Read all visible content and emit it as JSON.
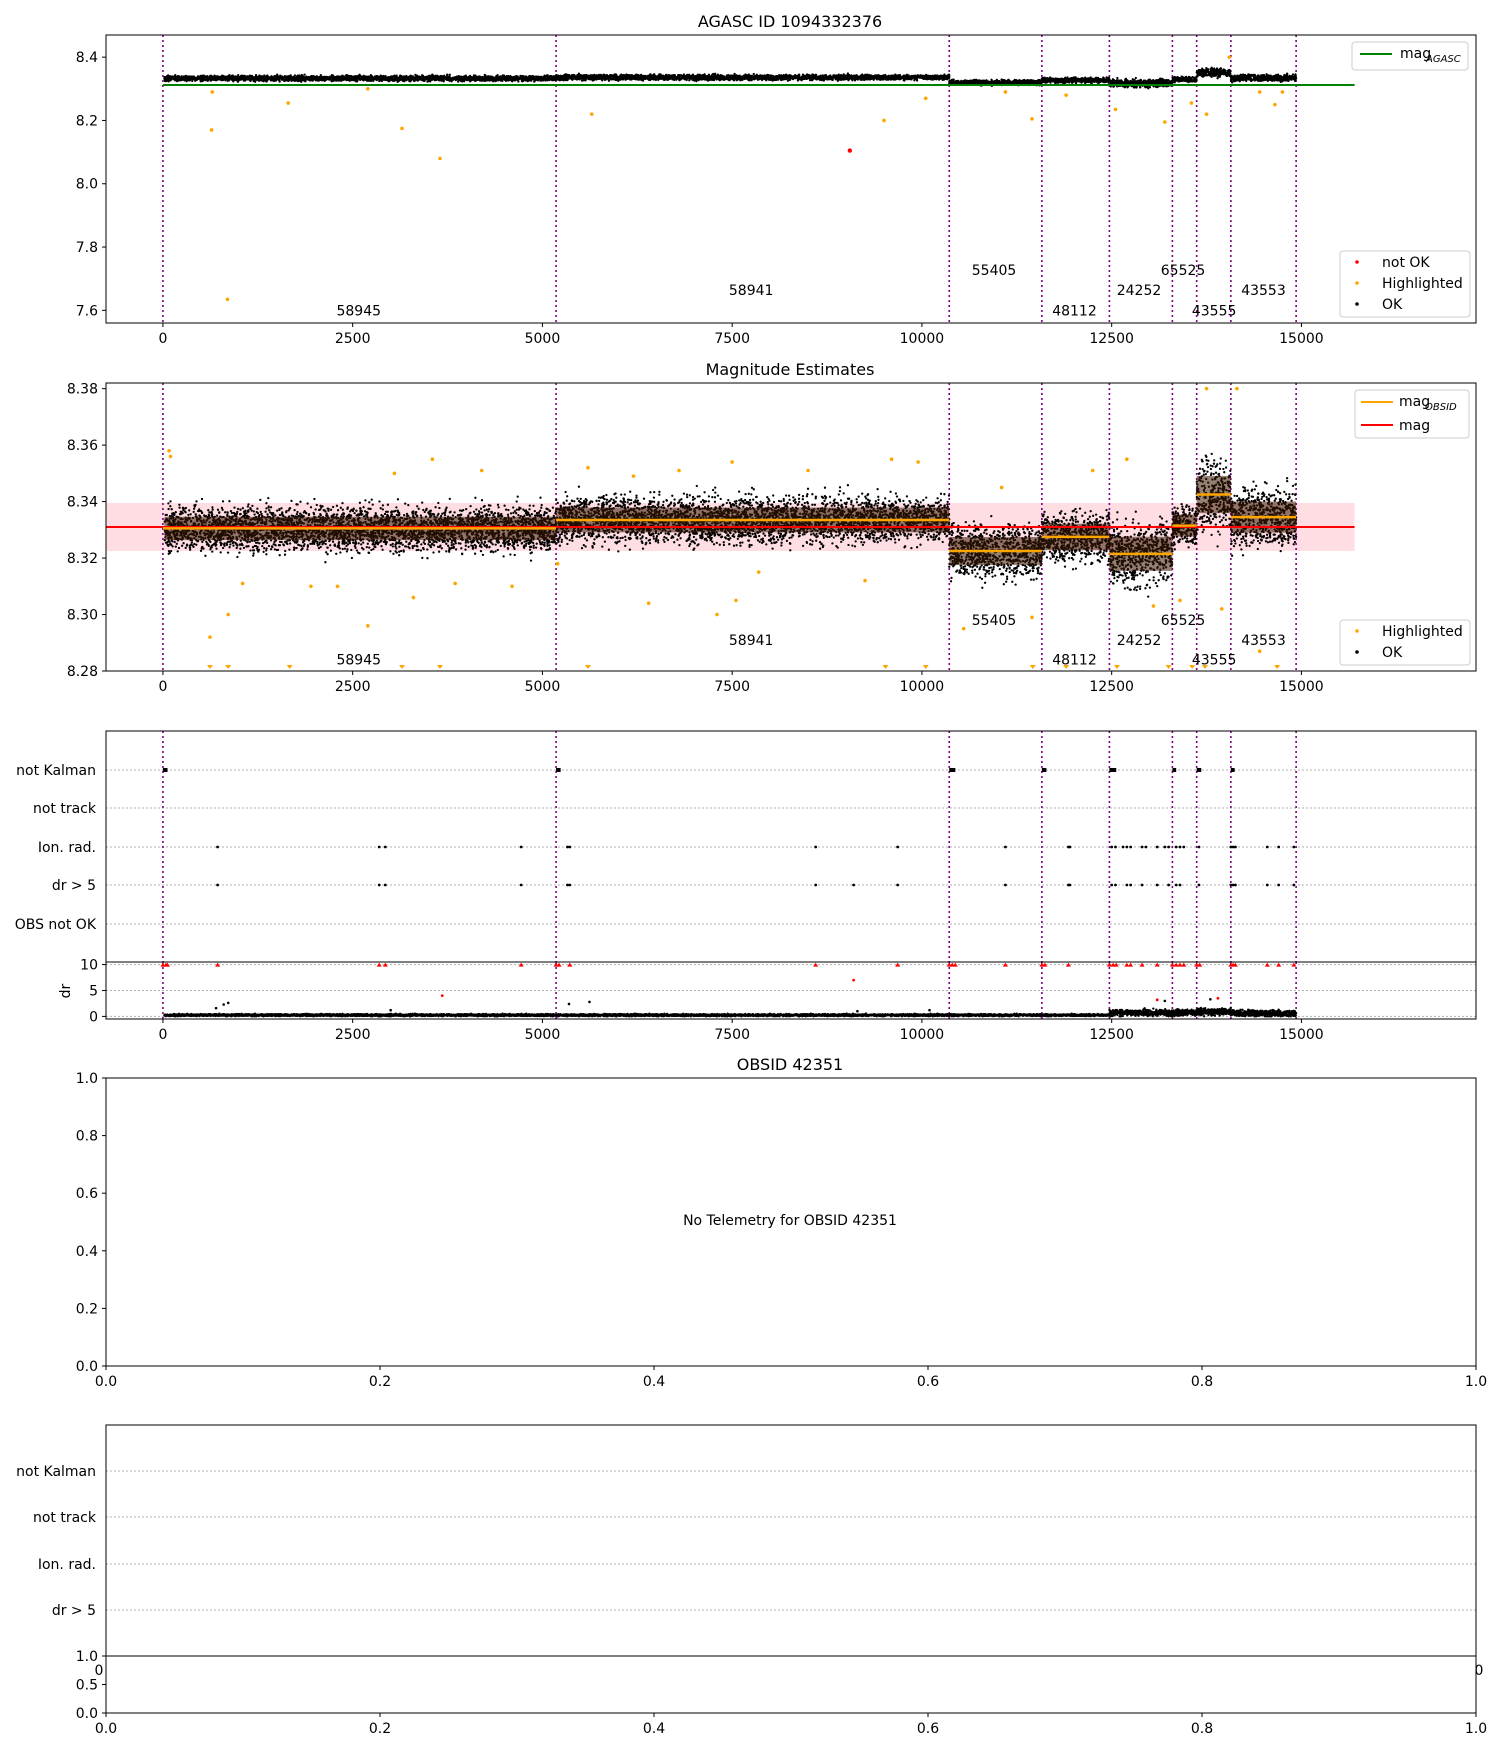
{
  "chart_data": [
    {
      "panel": "agasc_mag",
      "type": "scatter",
      "title": "AGASC ID 1094332376",
      "xlim": [
        -750,
        17300
      ],
      "ylim": [
        7.56,
        8.47
      ],
      "xticks": [
        0,
        2500,
        5000,
        7500,
        10000,
        12500,
        15000
      ],
      "yticks": [
        7.6,
        7.8,
        8.0,
        8.2,
        8.4
      ],
      "ytick_labels": [
        "7.6",
        "7.8",
        "8.0",
        "8.2",
        "8.4"
      ],
      "obs_boundaries": [
        0,
        5180,
        10360,
        11580,
        12470,
        13300,
        13620,
        14070,
        14930
      ],
      "obsid_labels": [
        {
          "text": "58945",
          "x": 2580,
          "y": 7.6
        },
        {
          "text": "58941",
          "x": 7750,
          "y": 7.665
        },
        {
          "text": "55405",
          "x": 10950,
          "y": 7.728
        },
        {
          "text": "48112",
          "x": 12010,
          "y": 7.6
        },
        {
          "text": "24252",
          "x": 12860,
          "y": 7.665
        },
        {
          "text": "65525",
          "x": 13440,
          "y": 7.728
        },
        {
          "text": "43555",
          "x": 13850,
          "y": 7.6
        },
        {
          "text": "43553",
          "x": 14500,
          "y": 7.665
        }
      ],
      "series": [
        {
          "name": "mag_AGASC",
          "kind": "line",
          "color": "#008000",
          "x": [
            0,
            15700
          ],
          "y": [
            8.312,
            8.312
          ]
        },
        {
          "name": "OK",
          "kind": "band",
          "color": "#000000",
          "segments": [
            {
              "x": [
                20,
                5180
              ],
              "center": 8.333,
              "spread": 0.008
            },
            {
              "x": [
                5180,
                10360
              ],
              "center": 8.336,
              "spread": 0.008
            },
            {
              "x": [
                10360,
                11580
              ],
              "center": 8.32,
              "spread": 0.008
            },
            {
              "x": [
                11580,
                12470
              ],
              "center": 8.327,
              "spread": 0.008
            },
            {
              "x": [
                12470,
                13300
              ],
              "center": 8.318,
              "spread": 0.012
            },
            {
              "x": [
                13300,
                13620
              ],
              "center": 8.33,
              "spread": 0.008
            },
            {
              "x": [
                13620,
                14070
              ],
              "center": 8.352,
              "spread": 0.012
            },
            {
              "x": [
                14070,
                14930
              ],
              "center": 8.334,
              "spread": 0.01
            }
          ]
        },
        {
          "name": "Highlighted",
          "kind": "scatter",
          "color": "#ffa500",
          "points": [
            [
              640,
              8.17
            ],
            [
              650,
              8.29
            ],
            [
              850,
              7.635
            ],
            [
              1650,
              8.255
            ],
            [
              2700,
              8.3
            ],
            [
              3150,
              8.175
            ],
            [
              3650,
              8.08
            ],
            [
              5650,
              8.22
            ],
            [
              9500,
              8.2
            ],
            [
              10050,
              8.27
            ],
            [
              11100,
              8.29
            ],
            [
              11450,
              8.205
            ],
            [
              11900,
              8.28
            ],
            [
              12550,
              8.235
            ],
            [
              13200,
              8.195
            ],
            [
              13550,
              8.255
            ],
            [
              13750,
              8.22
            ],
            [
              14050,
              8.4
            ],
            [
              14450,
              8.29
            ],
            [
              14650,
              8.25
            ],
            [
              14750,
              8.29
            ]
          ]
        },
        {
          "name": "not OK",
          "kind": "scatter",
          "color": "#ff0000",
          "points": [
            [
              9050,
              8.105
            ]
          ]
        }
      ],
      "legend_top": {
        "placement": "top-right",
        "entries": [
          {
            "label": "mag",
            "sub": "AGASC",
            "color": "#008000"
          }
        ]
      },
      "legend_bottom": {
        "placement": "bottom-right",
        "entries": [
          {
            "label": "not OK",
            "color": "#ff0000"
          },
          {
            "label": "Highlighted",
            "color": "#ffa500"
          },
          {
            "label": "OK",
            "color": "#000000"
          }
        ]
      }
    },
    {
      "panel": "mag_estimates",
      "type": "scatter",
      "title": "Magnitude Estimates",
      "xlim": [
        -750,
        17300
      ],
      "ylim": [
        8.28,
        8.382
      ],
      "xticks": [
        0,
        2500,
        5000,
        7500,
        10000,
        12500,
        15000
      ],
      "yticks": [
        8.28,
        8.3,
        8.32,
        8.34,
        8.36,
        8.38
      ],
      "ytick_labels": [
        "8.28",
        "8.30",
        "8.32",
        "8.34",
        "8.36",
        "8.38"
      ],
      "obs_boundaries": [
        0,
        5180,
        10360,
        11580,
        12470,
        13300,
        13620,
        14070,
        14930
      ],
      "obsid_labels": [
        {
          "text": "58945",
          "x": 2580,
          "y": 8.284
        },
        {
          "text": "58941",
          "x": 7750,
          "y": 8.291
        },
        {
          "text": "55405",
          "x": 10950,
          "y": 8.298
        },
        {
          "text": "48112",
          "x": 12010,
          "y": 8.284
        },
        {
          "text": "24252",
          "x": 12860,
          "y": 8.291
        },
        {
          "text": "65525",
          "x": 13440,
          "y": 8.298
        },
        {
          "text": "43555",
          "x": 13850,
          "y": 8.284
        },
        {
          "text": "43553",
          "x": 14500,
          "y": 8.291
        }
      ],
      "mag_line": {
        "name": "mag",
        "color": "#ff0000",
        "value": 8.331,
        "x": [
          -750,
          15700
        ]
      },
      "mag_band": {
        "color": "#ffb6c1",
        "range": [
          8.3225,
          8.3395
        ]
      },
      "obsid_mags": [
        {
          "x": [
            0,
            5180
          ],
          "value": 8.3305
        },
        {
          "x": [
            5180,
            10360
          ],
          "value": 8.3335
        },
        {
          "x": [
            10360,
            11580
          ],
          "value": 8.3225
        },
        {
          "x": [
            11580,
            12470
          ],
          "value": 8.3275
        },
        {
          "x": [
            12470,
            13300
          ],
          "value": 8.3215
        },
        {
          "x": [
            13300,
            13620
          ],
          "value": 8.3315
        },
        {
          "x": [
            13620,
            14070
          ],
          "value": 8.3425
        },
        {
          "x": [
            14070,
            14930
          ],
          "value": 8.3345
        }
      ],
      "ok_segments": [
        {
          "x": [
            20,
            5180
          ],
          "center": 8.3305,
          "spread": 0.0075
        },
        {
          "x": [
            5180,
            10360
          ],
          "center": 8.3335,
          "spread": 0.008
        },
        {
          "x": [
            10360,
            11580
          ],
          "center": 8.3225,
          "spread": 0.009
        },
        {
          "x": [
            11580,
            12470
          ],
          "center": 8.3275,
          "spread": 0.0085
        },
        {
          "x": [
            12470,
            13300
          ],
          "center": 8.3215,
          "spread": 0.011
        },
        {
          "x": [
            13300,
            13620
          ],
          "center": 8.3315,
          "spread": 0.007
        },
        {
          "x": [
            13620,
            14070
          ],
          "center": 8.3425,
          "spread": 0.012
        },
        {
          "x": [
            14070,
            14930
          ],
          "center": 8.3345,
          "spread": 0.01
        }
      ],
      "highlighted_points": [
        [
          80,
          8.358
        ],
        [
          100,
          8.356
        ],
        [
          620,
          8.292
        ],
        [
          860,
          8.3
        ],
        [
          1050,
          8.311
        ],
        [
          1950,
          8.31
        ],
        [
          2300,
          8.31
        ],
        [
          2700,
          8.296
        ],
        [
          3050,
          8.35
        ],
        [
          3300,
          8.306
        ],
        [
          3550,
          8.355
        ],
        [
          3850,
          8.311
        ],
        [
          4200,
          8.351
        ],
        [
          4600,
          8.31
        ],
        [
          5200,
          8.318
        ],
        [
          5600,
          8.352
        ],
        [
          6200,
          8.349
        ],
        [
          6400,
          8.304
        ],
        [
          6800,
          8.351
        ],
        [
          7300,
          8.3
        ],
        [
          7550,
          8.305
        ],
        [
          7500,
          8.354
        ],
        [
          7850,
          8.315
        ],
        [
          8500,
          8.351
        ],
        [
          9250,
          8.312
        ],
        [
          9600,
          8.355
        ],
        [
          9950,
          8.354
        ],
        [
          10550,
          8.295
        ],
        [
          11050,
          8.345
        ],
        [
          11450,
          8.299
        ],
        [
          12250,
          8.351
        ],
        [
          12700,
          8.355
        ],
        [
          13050,
          8.303
        ],
        [
          13400,
          8.305
        ],
        [
          13750,
          8.38
        ],
        [
          13950,
          8.302
        ],
        [
          14150,
          8.38
        ],
        [
          14450,
          8.287
        ]
      ],
      "clipped_low_x": [
        620,
        860,
        1670,
        3150,
        3650,
        5600,
        9520,
        10050,
        11460,
        11900,
        12570,
        13250,
        13560,
        13730,
        14680
      ],
      "legend_top": {
        "placement": "top-right",
        "entries": [
          {
            "label": "mag",
            "sub": "OBSID",
            "color": "#ffa500"
          },
          {
            "label": "mag",
            "color": "#ff0000"
          }
        ]
      },
      "legend_bottom": {
        "placement": "bottom-right",
        "entries": [
          {
            "label": "Highlighted",
            "color": "#ffa500"
          },
          {
            "label": "OK",
            "color": "#000000"
          }
        ]
      }
    },
    {
      "panel": "flags",
      "type": "scatter",
      "xlim": [
        -750,
        17300
      ],
      "categories": [
        "not Kalman",
        "not track",
        "Ion. rad.",
        "dr > 5",
        "OBS not OK"
      ],
      "obs_boundaries": [
        0,
        5180,
        10360,
        11580,
        12470,
        13300,
        13620,
        14070,
        14930
      ],
      "flag_runs": {
        "not Kalman": [
          [
            0,
            60
          ],
          [
            5180,
            5240
          ],
          [
            10360,
            10440
          ],
          [
            11580,
            11640
          ],
          [
            12470,
            12560
          ],
          [
            13300,
            13350
          ],
          [
            13620,
            13680
          ],
          [
            14070,
            14120
          ]
        ],
        "Ion. rad.": [
          [
            720
          ],
          [
            2850
          ],
          [
            2930
          ],
          [
            4720
          ],
          [
            5330
          ],
          [
            5360
          ],
          [
            8600
          ],
          [
            9680
          ],
          [
            11100
          ],
          [
            11930
          ],
          [
            11950
          ],
          [
            12500
          ],
          [
            12550
          ],
          [
            12650
          ],
          [
            12700
          ],
          [
            12750
          ],
          [
            12900
          ],
          [
            12950
          ],
          [
            13100
          ],
          [
            13200
          ],
          [
            13250
          ],
          [
            13350
          ],
          [
            13400
          ],
          [
            13450
          ],
          [
            13650
          ],
          [
            14070
          ],
          [
            14100
          ],
          [
            14130
          ],
          [
            14550
          ],
          [
            14700
          ],
          [
            14900
          ]
        ],
        "dr > 5": [
          [
            720
          ],
          [
            2850
          ],
          [
            2930
          ],
          [
            4720
          ],
          [
            5330
          ],
          [
            5360
          ],
          [
            8600
          ],
          [
            9100
          ],
          [
            9680
          ],
          [
            11100
          ],
          [
            11930
          ],
          [
            11950
          ],
          [
            12500
          ],
          [
            12550
          ],
          [
            12700
          ],
          [
            12750
          ],
          [
            12900
          ],
          [
            13100
          ],
          [
            13250
          ],
          [
            13350
          ],
          [
            13400
          ],
          [
            13650
          ],
          [
            14070
          ],
          [
            14100
          ],
          [
            14130
          ],
          [
            14550
          ],
          [
            14700
          ],
          [
            14900
          ]
        ]
      }
    },
    {
      "panel": "dr",
      "type": "scatter",
      "ylabel": "dr",
      "xlim": [
        -750,
        17300
      ],
      "ylim": [
        -0.5,
        10.5
      ],
      "yticks": [
        0,
        5,
        10
      ],
      "xticks": [
        0,
        2500,
        5000,
        7500,
        10000,
        12500,
        15000
      ],
      "ok_segments": [
        {
          "x": [
            20,
            12470
          ],
          "center": 0.25,
          "spread": 0.2
        },
        {
          "x": [
            12470,
            13620
          ],
          "center": 0.7,
          "spread": 0.6
        },
        {
          "x": [
            13620,
            14070
          ],
          "center": 0.9,
          "spread": 0.7
        },
        {
          "x": [
            14070,
            14930
          ],
          "center": 0.6,
          "spread": 0.6
        }
      ],
      "outliers": [
        [
          700,
          1.6
        ],
        [
          800,
          2.3
        ],
        [
          860,
          2.6
        ],
        [
          3000,
          1.2
        ],
        [
          5350,
          2.4
        ],
        [
          5620,
          2.8
        ],
        [
          9150,
          1.0
        ],
        [
          10100,
          1.2
        ],
        [
          13200,
          3.0
        ],
        [
          13800,
          3.3
        ]
      ],
      "red_outliers": [
        [
          3680,
          4.0
        ],
        [
          9100,
          7.0
        ],
        [
          13100,
          3.2
        ],
        [
          13900,
          3.5
        ]
      ],
      "clipped_x": [
        0,
        40,
        60,
        720,
        2850,
        2930,
        4720,
        5180,
        5220,
        5360,
        8600,
        9680,
        10360,
        10400,
        10440,
        11100,
        11580,
        11620,
        11930,
        12470,
        12520,
        12560,
        12700,
        12750,
        12900,
        13100,
        13300,
        13350,
        13400,
        13450,
        13620,
        13660,
        14070,
        14100,
        14130,
        14550,
        14700,
        14900
      ]
    },
    {
      "panel": "obsid_mag",
      "type": "scatter",
      "title": "OBSID 42351",
      "message": "No Telemetry for OBSID 42351",
      "xlim": [
        0,
        1
      ],
      "ylim": [
        0,
        1
      ],
      "xticks": [
        "0.0",
        "0.2",
        "0.4",
        "0.6",
        "0.8",
        "1.0"
      ],
      "yticks": [
        "0.0",
        "0.2",
        "0.4",
        "0.6",
        "0.8",
        "1.0"
      ]
    },
    {
      "panel": "obsid_flags",
      "type": "scatter",
      "categories": [
        "not Kalman",
        "not track",
        "Ion. rad.",
        "dr > 5"
      ],
      "overlap_ticks": {
        "left": "0",
        "right": "0"
      }
    },
    {
      "panel": "obsid_dr",
      "type": "scatter",
      "xlim": [
        0,
        1
      ],
      "ylim": [
        0,
        1
      ],
      "xticks": [
        "0.0",
        "0.2",
        "0.4",
        "0.6",
        "0.8",
        "1.0"
      ],
      "yticks": [
        "0.0",
        "0.5",
        "1.0"
      ]
    }
  ]
}
